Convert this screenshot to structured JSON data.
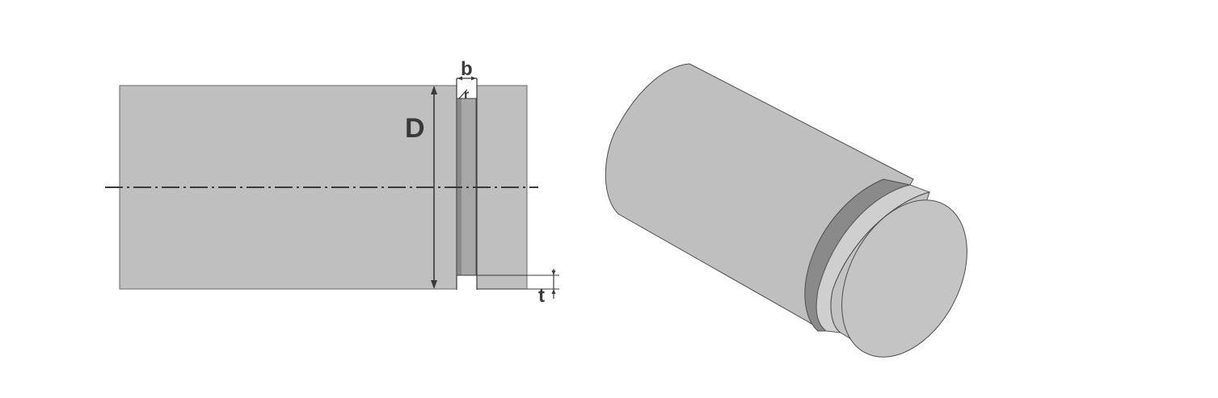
{
  "labels": {
    "diameter": "D",
    "groove_width": "b",
    "radius": "r",
    "groove_depth": "t"
  },
  "colors": {
    "body_fill": "#bfbfbf",
    "body_stroke": "#4d4d4d",
    "groove_dark": "#8a8a8a",
    "groove_light": "#d0d0d0",
    "line": "#3a3a3a",
    "background": "#ffffff"
  }
}
